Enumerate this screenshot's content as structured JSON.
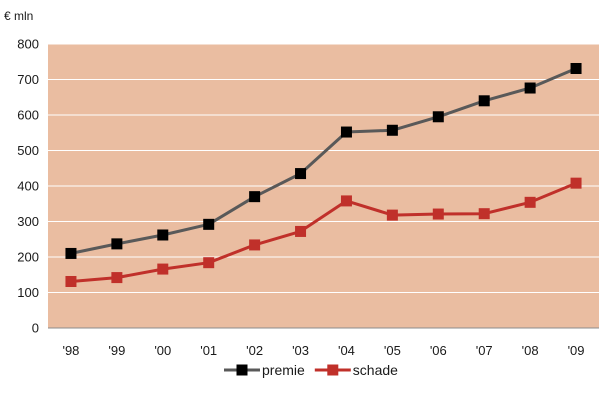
{
  "chart_data": {
    "type": "line",
    "unit_label": "€ mln",
    "categories": [
      "'98",
      "'99",
      "'00",
      "'01",
      "'02",
      "'03",
      "'04",
      "'05",
      "'06",
      "'07",
      "'08",
      "'09"
    ],
    "ylim": [
      0,
      800
    ],
    "yticks": [
      0,
      100,
      200,
      300,
      400,
      500,
      600,
      700,
      800
    ],
    "grid": true,
    "legend_position": "bottom",
    "plot_background": "#eabda1",
    "series": [
      {
        "name": "premie",
        "color": "#595959",
        "marker_color": "#000000",
        "values": [
          210,
          237,
          262,
          292,
          370,
          435,
          552,
          557,
          595,
          640,
          676,
          731
        ]
      },
      {
        "name": "schade",
        "color": "#c0302a",
        "marker_color": "#c0302a",
        "values": [
          131,
          142,
          166,
          184,
          234,
          272,
          358,
          318,
          321,
          322,
          354,
          408
        ]
      }
    ]
  }
}
